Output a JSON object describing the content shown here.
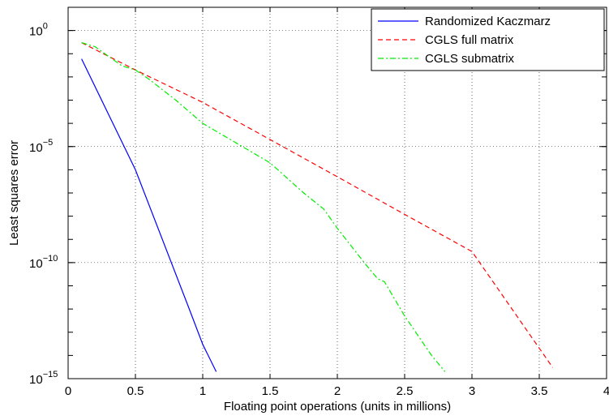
{
  "chart_data": {
    "type": "line",
    "title": "",
    "xlabel": "Floating point operations (units in millions)",
    "ylabel": "Least squares error",
    "xlim": [
      0,
      4
    ],
    "ylim_log10": [
      -15,
      1
    ],
    "yscale": "log",
    "grid": true,
    "legend_position": "top-right",
    "x_ticks": [
      "0",
      "0.5",
      "1",
      "1.5",
      "2",
      "2.5",
      "3",
      "3.5",
      "4"
    ],
    "y_ticks": [
      {
        "base": "10",
        "exp": "0",
        "value": 1
      },
      {
        "base": "10",
        "exp": "−5",
        "value": 1e-05
      },
      {
        "base": "10",
        "exp": "−10",
        "value": 1e-10
      },
      {
        "base": "10",
        "exp": "−15",
        "value": 1e-15
      }
    ],
    "series": [
      {
        "name": "Randomized Kaczmarz",
        "color": "#0000ff",
        "style": "solid",
        "points": [
          [
            0.1,
            0.06
          ],
          [
            0.5,
            1e-06
          ],
          [
            0.9,
            1e-12
          ],
          [
            1.0,
            3e-14
          ],
          [
            1.1,
            2e-15
          ]
        ]
      },
      {
        "name": "CGLS full matrix",
        "color": "#ff0000",
        "style": "dashed",
        "points": [
          [
            0.1,
            0.3
          ],
          [
            0.5,
            0.02
          ],
          [
            1.0,
            0.0008
          ],
          [
            1.5,
            2e-05
          ],
          [
            2.0,
            5e-07
          ],
          [
            2.5,
            1.2e-08
          ],
          [
            3.0,
            3e-10
          ],
          [
            3.6,
            3e-15
          ]
        ]
      },
      {
        "name": "CGLS submatrix",
        "color": "#00ee00",
        "style": "dashdot",
        "points": [
          [
            0.1,
            0.3
          ],
          [
            0.2,
            0.2
          ],
          [
            0.4,
            0.03
          ],
          [
            0.5,
            0.02
          ],
          [
            0.6,
            0.008
          ],
          [
            0.8,
            0.001
          ],
          [
            1.0,
            0.0001
          ],
          [
            1.5,
            2e-06
          ],
          [
            1.75,
            1e-07
          ],
          [
            1.9,
            2e-08
          ],
          [
            2.0,
            3e-09
          ],
          [
            2.2,
            1e-10
          ],
          [
            2.3,
            2e-11
          ],
          [
            2.35,
            1.5e-11
          ],
          [
            2.5,
            5e-13
          ],
          [
            2.7,
            1e-14
          ],
          [
            2.8,
            2e-15
          ]
        ]
      }
    ]
  }
}
